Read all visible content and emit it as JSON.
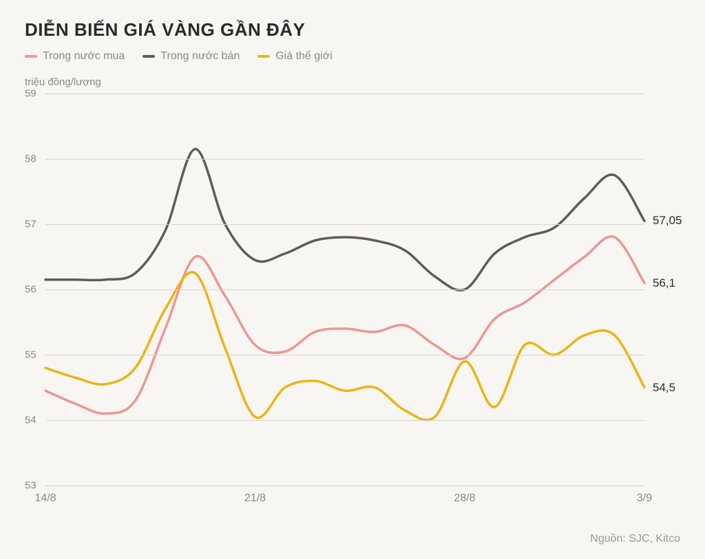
{
  "title": "DIỄN BIẾN GIÁ VÀNG GẦN ĐÂY",
  "ylabel": "triệu đồng/lượng",
  "source": "Nguồn: SJC, Kitco",
  "chart": {
    "type": "line",
    "background_color": "#f7f6f2",
    "grid_color": "#d9d6ce",
    "title_fontsize": 26,
    "label_fontsize": 16,
    "line_width": 3.5,
    "ylim": [
      53,
      59
    ],
    "ytick_step": 1,
    "yticks": [
      "53",
      "54",
      "55",
      "56",
      "57",
      "58",
      "59"
    ],
    "xlim": [
      0,
      20
    ],
    "xticks": [
      {
        "pos": 0,
        "label": "14/8"
      },
      {
        "pos": 7,
        "label": "21/8"
      },
      {
        "pos": 14,
        "label": "28/8"
      },
      {
        "pos": 20,
        "label": "3/9"
      }
    ],
    "series": [
      {
        "key": "buy",
        "name": "Trong nước mua",
        "color": "#ec9696",
        "end_label": "56,1",
        "end_value": 56.1,
        "data": [
          54.45,
          54.25,
          54.1,
          54.3,
          55.4,
          56.5,
          55.9,
          55.15,
          55.05,
          55.35,
          55.4,
          55.35,
          55.45,
          55.15,
          54.95,
          55.55,
          55.8,
          56.15,
          56.5,
          56.8,
          56.1
        ]
      },
      {
        "key": "sell",
        "name": "Trong nước bán",
        "color": "#5c5c5c",
        "end_label": "57,05",
        "end_value": 57.05,
        "data": [
          56.15,
          56.15,
          56.15,
          56.25,
          56.9,
          58.15,
          57.0,
          56.45,
          56.55,
          56.75,
          56.8,
          56.75,
          56.6,
          56.2,
          56.0,
          56.55,
          56.8,
          56.95,
          57.4,
          57.75,
          57.05
        ]
      },
      {
        "key": "world",
        "name": "Giá thế giới",
        "color": "#eeb313",
        "end_label": "54,5",
        "end_value": 54.5,
        "data": [
          54.8,
          54.65,
          54.55,
          54.8,
          55.7,
          56.25,
          55.1,
          54.05,
          54.5,
          54.6,
          54.45,
          54.5,
          54.15,
          54.05,
          54.9,
          54.2,
          55.15,
          55.0,
          55.3,
          55.3,
          54.5
        ]
      }
    ]
  },
  "legend": [
    {
      "label": "Trong nước mua",
      "color": "#ec9696"
    },
    {
      "label": "Trong nước bán",
      "color": "#5c5c5c"
    },
    {
      "label": "Giá thế giới",
      "color": "#eeb313"
    }
  ]
}
